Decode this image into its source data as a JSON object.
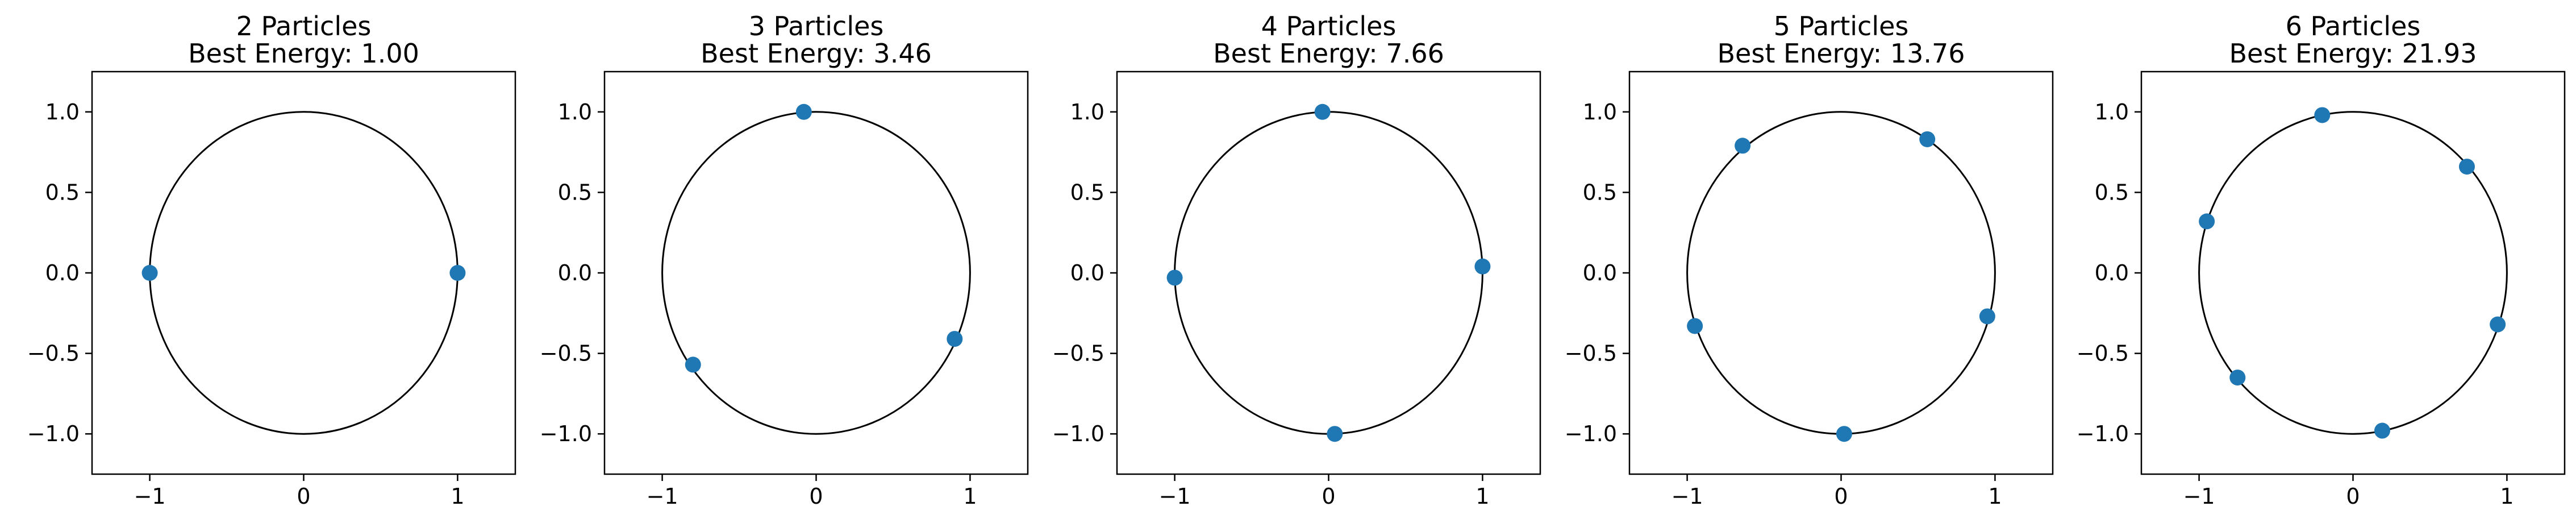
{
  "chart_data": [
    {
      "type": "scatter",
      "title": "2 Particles",
      "subtitle": "Best Energy: 1.00",
      "xlim": [
        -1.375,
        1.375
      ],
      "ylim": [
        -1.25,
        1.25
      ],
      "xticks": [
        -1,
        0,
        1
      ],
      "xtick_labels": [
        "−1",
        "0",
        "1"
      ],
      "yticks": [
        1.0,
        0.5,
        0.0,
        -0.5,
        -1.0
      ],
      "ytick_labels": [
        "1.0",
        "0.5",
        "0.0",
        "−0.5",
        "−1.0"
      ],
      "circle": {
        "radius": 1.0,
        "color": "#000000"
      },
      "grid": false,
      "series": [
        {
          "color": "#1f77b4",
          "x": [
            -1.0,
            1.0
          ],
          "y": [
            0.0,
            0.0
          ]
        }
      ]
    },
    {
      "type": "scatter",
      "title": "3 Particles",
      "subtitle": "Best Energy: 3.46",
      "xlim": [
        -1.375,
        1.375
      ],
      "ylim": [
        -1.25,
        1.25
      ],
      "xticks": [
        -1,
        0,
        1
      ],
      "xtick_labels": [
        "−1",
        "0",
        "1"
      ],
      "yticks": [
        1.0,
        0.5,
        0.0,
        -0.5,
        -1.0
      ],
      "ytick_labels": [
        "1.0",
        "0.5",
        "0.0",
        "−0.5",
        "−1.0"
      ],
      "circle": {
        "radius": 1.0,
        "color": "#000000"
      },
      "grid": false,
      "series": [
        {
          "color": "#1f77b4",
          "x": [
            -0.08,
            -0.8,
            0.9
          ],
          "y": [
            1.0,
            -0.57,
            -0.41
          ]
        }
      ]
    },
    {
      "type": "scatter",
      "title": "4 Particles",
      "subtitle": "Best Energy: 7.66",
      "xlim": [
        -1.375,
        1.375
      ],
      "ylim": [
        -1.25,
        1.25
      ],
      "xticks": [
        -1,
        0,
        1
      ],
      "xtick_labels": [
        "−1",
        "0",
        "1"
      ],
      "yticks": [
        1.0,
        0.5,
        0.0,
        -0.5,
        -1.0
      ],
      "ytick_labels": [
        "1.0",
        "0.5",
        "0.0",
        "−0.5",
        "−1.0"
      ],
      "circle": {
        "radius": 1.0,
        "color": "#000000"
      },
      "grid": false,
      "series": [
        {
          "color": "#1f77b4",
          "x": [
            -0.04,
            1.0,
            0.04,
            -1.0
          ],
          "y": [
            1.0,
            0.04,
            -1.0,
            -0.03
          ]
        }
      ]
    },
    {
      "type": "scatter",
      "title": "5 Particles",
      "subtitle": "Best Energy: 13.76",
      "xlim": [
        -1.375,
        1.375
      ],
      "ylim": [
        -1.25,
        1.25
      ],
      "xticks": [
        -1,
        0,
        1
      ],
      "xtick_labels": [
        "−1",
        "0",
        "1"
      ],
      "yticks": [
        1.0,
        0.5,
        0.0,
        -0.5,
        -1.0
      ],
      "ytick_labels": [
        "1.0",
        "0.5",
        "0.0",
        "−0.5",
        "−1.0"
      ],
      "circle": {
        "radius": 1.0,
        "color": "#000000"
      },
      "grid": false,
      "series": [
        {
          "color": "#1f77b4",
          "x": [
            -0.64,
            0.56,
            0.95,
            0.02,
            -0.95
          ],
          "y": [
            0.79,
            0.83,
            -0.27,
            -1.0,
            -0.33
          ]
        }
      ]
    },
    {
      "type": "scatter",
      "title": "6 Particles",
      "subtitle": "Best Energy: 21.93",
      "xlim": [
        -1.375,
        1.375
      ],
      "ylim": [
        -1.25,
        1.25
      ],
      "xticks": [
        -1,
        0,
        1
      ],
      "xtick_labels": [
        "−1",
        "0",
        "1"
      ],
      "yticks": [
        1.0,
        0.5,
        0.0,
        -0.5,
        -1.0
      ],
      "ytick_labels": [
        "1.0",
        "0.5",
        "0.0",
        "−0.5",
        "−1.0"
      ],
      "circle": {
        "radius": 1.0,
        "color": "#000000"
      },
      "grid": false,
      "series": [
        {
          "color": "#1f77b4",
          "x": [
            -0.2,
            0.74,
            0.94,
            0.19,
            -0.75,
            -0.95
          ],
          "y": [
            0.98,
            0.66,
            -0.32,
            -0.98,
            -0.65,
            0.32
          ]
        }
      ]
    }
  ]
}
